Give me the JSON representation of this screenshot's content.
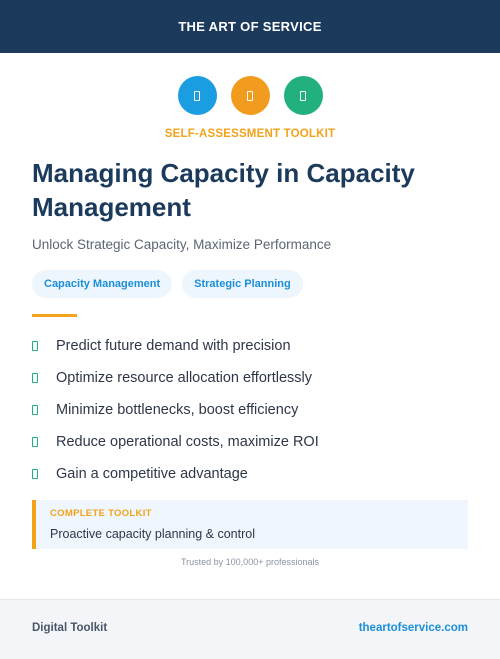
{
  "header": {
    "brand": "THE ART OF SERVICE"
  },
  "icons": [
    {
      "name": "chart-icon",
      "color": "#1b9de2"
    },
    {
      "name": "lightning-icon",
      "color": "#f29c1f"
    },
    {
      "name": "check-shield-icon",
      "color": "#22b07d"
    }
  ],
  "kicker": "SELF-ASSESSMENT TOOLKIT",
  "title": "Managing Capacity in Capacity Management",
  "subtitle": "Unlock Strategic Capacity, Maximize Performance",
  "tags": [
    "Capacity Management",
    "Strategic Planning"
  ],
  "features": [
    "Predict future demand with precision",
    "Optimize resource allocation effortlessly",
    "Minimize bottlenecks, boost efficiency",
    "Reduce operational costs, maximize ROI",
    "Gain a competitive advantage"
  ],
  "callout": {
    "label": "COMPLETE TOOLKIT",
    "text": "Proactive capacity planning & control"
  },
  "trust": "Trusted by 100,000+ professionals",
  "footer": {
    "left": "Digital Toolkit",
    "right": "theartofservice.com"
  },
  "colors": {
    "navy": "#1b3a5c",
    "accent_orange": "#f2a31a",
    "accent_blue": "#1b8fd6",
    "accent_green": "#22b07d"
  }
}
